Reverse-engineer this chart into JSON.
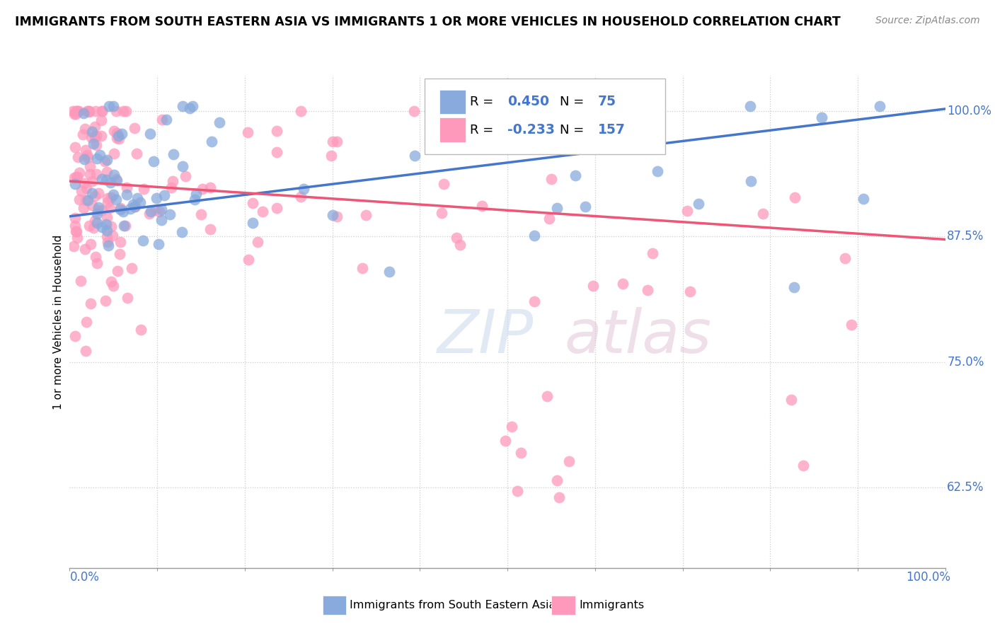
{
  "title": "IMMIGRANTS FROM SOUTH EASTERN ASIA VS IMMIGRANTS 1 OR MORE VEHICLES IN HOUSEHOLD CORRELATION CHART",
  "source": "Source: ZipAtlas.com",
  "ylabel": "1 or more Vehicles in Household",
  "legend_label_blue": "Immigrants from South Eastern Asia",
  "legend_label_pink": "Immigrants",
  "legend_R_blue_val": "0.450",
  "legend_N_blue_val": "75",
  "legend_R_pink_val": "-0.233",
  "legend_N_pink_val": "157",
  "blue_color": "#88AADD",
  "pink_color": "#FF99BB",
  "blue_line_color": "#4477CC",
  "pink_line_color": "#EE5577",
  "watermark_zip": "ZIP",
  "watermark_atlas": "atlas",
  "right_ytick_vals": [
    0.625,
    0.75,
    0.875,
    1.0
  ],
  "right_ytick_labels": [
    "62.5%",
    "75.0%",
    "87.5%",
    "100.0%"
  ],
  "ylim_min": 0.545,
  "ylim_max": 1.035,
  "xlim_min": 0.0,
  "xlim_max": 1.0,
  "blue_trend_start_y": 0.895,
  "blue_trend_end_y": 1.002,
  "pink_trend_start_y": 0.93,
  "pink_trend_end_y": 0.872
}
